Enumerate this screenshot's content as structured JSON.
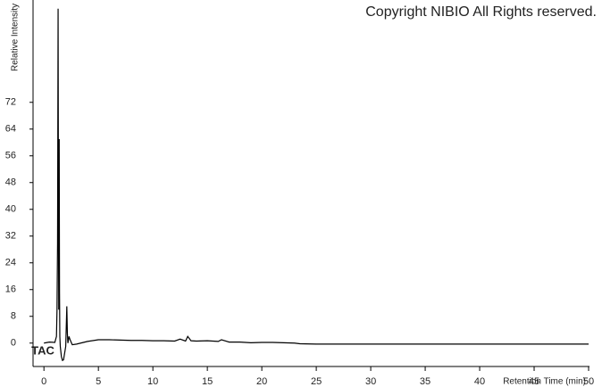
{
  "chart_data": {
    "type": "line",
    "y_label": "Relative Intensity",
    "x_label": "Retention Time (min)",
    "annotations": [
      "TAC",
      "Copyright NIBIO All Rights reserved."
    ],
    "x": [
      0,
      0.5,
      1.0,
      1.15,
      1.2,
      1.25,
      1.3,
      1.33,
      1.36,
      1.4,
      1.43,
      1.46,
      1.5,
      1.6,
      1.7,
      1.8,
      1.9,
      2.0,
      2.05,
      2.1,
      2.15,
      2.2,
      2.3,
      2.4,
      2.6,
      3,
      4,
      5,
      6,
      7,
      8,
      9,
      10,
      11,
      12,
      12.5,
      13,
      13.2,
      13.5,
      14,
      15,
      16,
      16.3,
      17,
      18,
      19,
      20,
      21,
      22,
      23,
      23.5,
      25,
      30,
      35,
      40,
      45,
      50
    ],
    "series": [
      {
        "color": "#000000",
        "values": [
          0,
          0.3,
          0.2,
          2,
          10,
          30,
          100,
          40,
          10,
          61,
          15,
          2,
          -1,
          -4,
          -5.2,
          -5,
          -3,
          -1,
          5,
          11,
          3,
          0,
          2,
          1,
          -0.5,
          -0.3,
          0.5,
          1,
          1,
          0.9,
          0.8,
          0.8,
          0.7,
          0.7,
          0.6,
          1.2,
          0.6,
          2,
          0.7,
          0.6,
          0.7,
          0.5,
          1,
          0.3,
          0.3,
          0.1,
          0.2,
          0.2,
          0.1,
          0,
          -0.2,
          -0.3,
          -0.3,
          -0.3,
          -0.3,
          -0.3,
          -0.3
        ]
      }
    ],
    "xlim": [
      -1,
      50
    ],
    "ylim": [
      -7,
      101
    ],
    "xticks": [
      0,
      5,
      10,
      15,
      20,
      25,
      30,
      35,
      40,
      45,
      50
    ],
    "yticks": [
      0,
      8,
      16,
      24,
      32,
      40,
      48,
      56,
      64,
      72
    ],
    "grid": false
  }
}
